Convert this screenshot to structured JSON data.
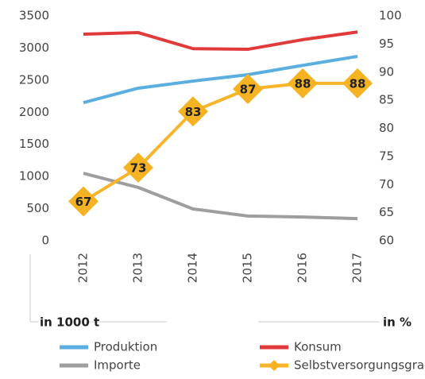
{
  "chart_data": {
    "type": "line",
    "categories": [
      "2012",
      "2013",
      "2014",
      "2015",
      "2016",
      "2017"
    ],
    "series": [
      {
        "name": "Produktion",
        "color": "#5aaee0",
        "values": [
          2150,
          2375,
          2485,
          2585,
          2730,
          2870
        ]
      },
      {
        "name": "Konsum",
        "color": "#e03a3a",
        "values": [
          3215,
          3240,
          2990,
          2980,
          3130,
          3250
        ]
      },
      {
        "name": "Importe",
        "color": "#9e9e9e",
        "values": [
          1050,
          830,
          495,
          385,
          370,
          345
        ]
      },
      {
        "name": "Selbstversorgungsgrad",
        "color": "#f6b52a",
        "axis": "y2",
        "values": [
          67,
          73,
          83,
          87,
          88,
          88
        ]
      }
    ],
    "ylabel": "in 1000 t",
    "y2label": "in %",
    "ylim": [
      0,
      3500
    ],
    "yticks": [
      0,
      500,
      1000,
      1500,
      2000,
      2500,
      3000,
      3500
    ],
    "y2lim": [
      60,
      100
    ],
    "y2ticks": [
      60,
      65,
      70,
      75,
      80,
      85,
      90,
      95,
      100
    ],
    "grid": false,
    "legend": "bottom"
  }
}
